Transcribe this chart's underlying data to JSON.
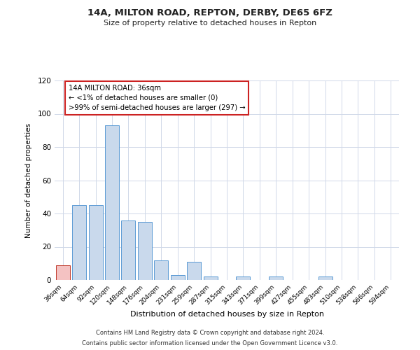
{
  "title": "14A, MILTON ROAD, REPTON, DERBY, DE65 6FZ",
  "subtitle": "Size of property relative to detached houses in Repton",
  "xlabel": "Distribution of detached houses by size in Repton",
  "ylabel": "Number of detached properties",
  "bar_labels": [
    "36sqm",
    "64sqm",
    "92sqm",
    "120sqm",
    "148sqm",
    "176sqm",
    "204sqm",
    "231sqm",
    "259sqm",
    "287sqm",
    "315sqm",
    "343sqm",
    "371sqm",
    "399sqm",
    "427sqm",
    "455sqm",
    "483sqm",
    "510sqm",
    "538sqm",
    "566sqm",
    "594sqm"
  ],
  "bar_values": [
    9,
    45,
    45,
    93,
    36,
    35,
    12,
    3,
    11,
    2,
    0,
    2,
    0,
    2,
    0,
    0,
    2,
    0,
    0,
    0,
    0
  ],
  "bar_color": "#c9d9ec",
  "bar_edge_color": "#5b9bd5",
  "highlight_bar_index": 0,
  "highlight_color": "#f4c2c2",
  "highlight_edge_color": "#c0392b",
  "ylim": [
    0,
    120
  ],
  "yticks": [
    0,
    20,
    40,
    60,
    80,
    100,
    120
  ],
  "annotation_title": "14A MILTON ROAD: 36sqm",
  "annotation_line1": "← <1% of detached houses are smaller (0)",
  "annotation_line2": ">99% of semi-detached houses are larger (297) →",
  "annotation_box_color": "#ffffff",
  "annotation_box_edge_color": "#cc2222",
  "footer_line1": "Contains HM Land Registry data © Crown copyright and database right 2024.",
  "footer_line2": "Contains public sector information licensed under the Open Government Licence v3.0.",
  "background_color": "#ffffff",
  "grid_color": "#d0d8e8"
}
